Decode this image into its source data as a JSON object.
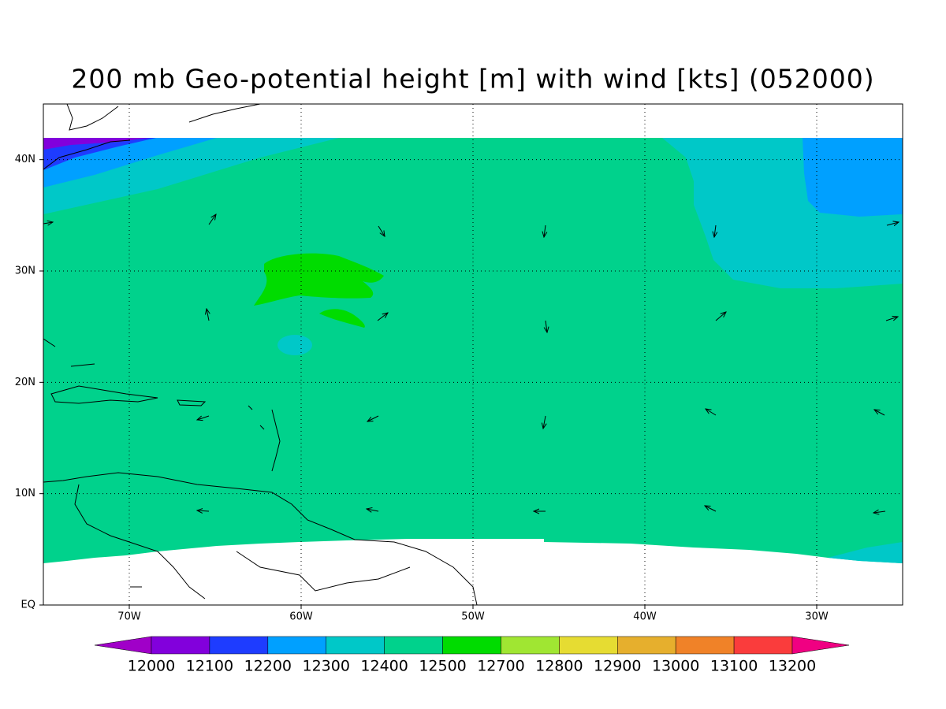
{
  "title": "200 mb Geo-potential height [m] with wind [kts] (052000)",
  "map": {
    "lon_range": [
      -75,
      -25
    ],
    "lat_range": [
      0,
      45
    ],
    "lon_ticks": [
      {
        "value": -70,
        "label": "70W"
      },
      {
        "value": -60,
        "label": "60W"
      },
      {
        "value": -50,
        "label": "50W"
      },
      {
        "value": -40,
        "label": "40W"
      },
      {
        "value": -30,
        "label": "30W"
      }
    ],
    "lat_ticks": [
      {
        "value": 0,
        "label": "EQ"
      },
      {
        "value": 10,
        "label": "10N"
      },
      {
        "value": 20,
        "label": "20N"
      },
      {
        "value": 30,
        "label": "30N"
      },
      {
        "value": 40,
        "label": "40N"
      }
    ],
    "grid": true
  },
  "colorbar": {
    "levels": [
      12000,
      12100,
      12200,
      12300,
      12400,
      12500,
      12700,
      12800,
      12900,
      13000,
      13100,
      13200
    ],
    "colors": [
      "#a000c8",
      "#8200dc",
      "#1e3cff",
      "#00a0ff",
      "#00c8c8",
      "#00d28c",
      "#00dc00",
      "#a0e632",
      "#e6dc32",
      "#e6af2d",
      "#f08228",
      "#fa3c3c",
      "#f00082"
    ]
  }
}
